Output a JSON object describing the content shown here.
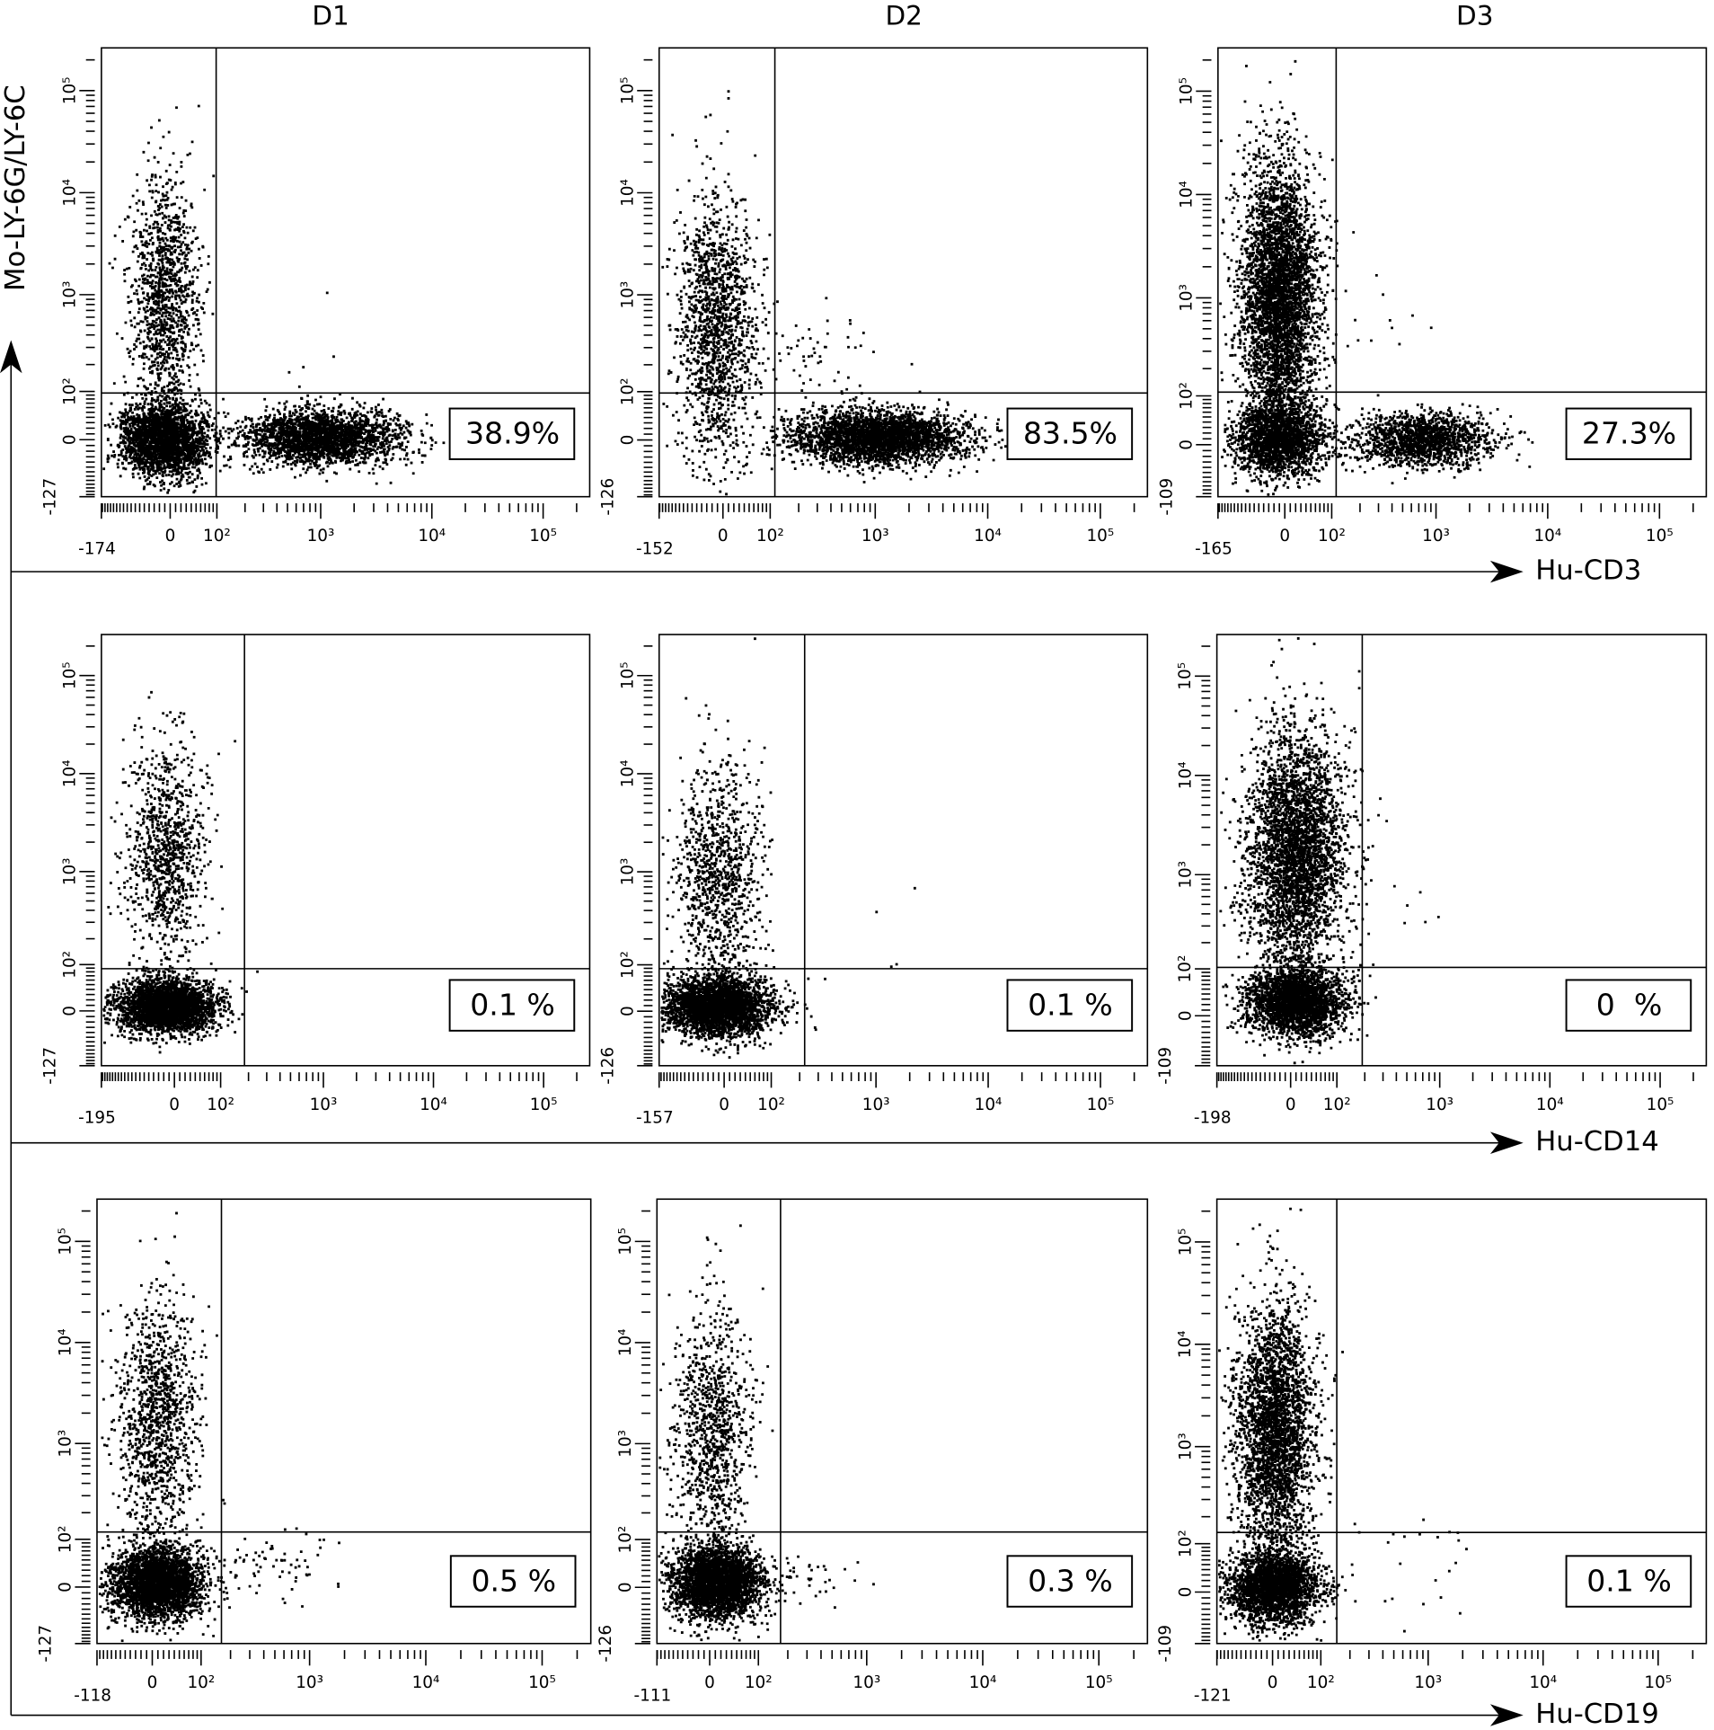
{
  "figure": {
    "column_titles": [
      "D1",
      "D2",
      "D3"
    ],
    "y_label": "Mo-LY-6G/LY-6C",
    "x_labels": [
      "Hu-CD3",
      "Hu-CD14",
      "Hu-CD19"
    ]
  },
  "chart_data": [
    {
      "type": "scatter",
      "xlim": [
        -174,
        262144
      ],
      "ylim": [
        -127,
        262144
      ],
      "xticks": [
        -174,
        0,
        {
          "value": 100,
          "label": "10²"
        },
        {
          "value": 1000,
          "label": "10³"
        },
        {
          "value": 10000,
          "label": "10⁴"
        },
        {
          "value": 100000,
          "label": "10⁵"
        }
      ],
      "yticks": [
        -127,
        0,
        {
          "value": 100,
          "label": "10²"
        },
        {
          "value": 1000,
          "label": "10³"
        },
        {
          "value": 10000,
          "label": "10⁴"
        },
        {
          "value": 100000,
          "label": "10⁵"
        }
      ],
      "annotation": "38.9%"
    },
    {
      "type": "scatter",
      "xlim": [
        -152,
        262144
      ],
      "ylim": [
        -126,
        262144
      ],
      "xticks": [
        -152,
        0,
        {
          "value": 100,
          "label": "10²"
        },
        {
          "value": 1000,
          "label": "10³"
        },
        {
          "value": 10000,
          "label": "10⁴"
        },
        {
          "value": 100000,
          "label": "10⁵"
        }
      ],
      "yticks": [
        -126,
        0,
        {
          "value": 100,
          "label": "10²"
        },
        {
          "value": 1000,
          "label": "10³"
        },
        {
          "value": 10000,
          "label": "10⁴"
        },
        {
          "value": 100000,
          "label": "10⁵"
        }
      ],
      "annotation": "83.5%"
    },
    {
      "type": "scatter",
      "xlim": [
        -165,
        262144
      ],
      "ylim": [
        -109,
        262144
      ],
      "xticks": [
        -165,
        0,
        {
          "value": 100,
          "label": "10²"
        },
        {
          "value": 1000,
          "label": "10³"
        },
        {
          "value": 10000,
          "label": "10⁴"
        },
        {
          "value": 100000,
          "label": "10⁵"
        }
      ],
      "yticks": [
        -109,
        0,
        {
          "value": 100,
          "label": "10²"
        },
        {
          "value": 1000,
          "label": "10³"
        },
        {
          "value": 10000,
          "label": "10⁴"
        },
        {
          "value": 100000,
          "label": "10⁵"
        }
      ],
      "annotation": "27.3%"
    },
    {
      "type": "scatter",
      "xlim": [
        -195,
        262144
      ],
      "ylim": [
        -127,
        262144
      ],
      "xticks": [
        -195,
        0,
        {
          "value": 100,
          "label": "10²"
        },
        {
          "value": 1000,
          "label": "10³"
        },
        {
          "value": 10000,
          "label": "10⁴"
        },
        {
          "value": 100000,
          "label": "10⁵"
        }
      ],
      "yticks": [
        -127,
        0,
        {
          "value": 100,
          "label": "10²"
        },
        {
          "value": 1000,
          "label": "10³"
        },
        {
          "value": 10000,
          "label": "10⁴"
        },
        {
          "value": 100000,
          "label": "10⁵"
        }
      ],
      "annotation": "0.1 %"
    },
    {
      "type": "scatter",
      "xlim": [
        -157,
        262144
      ],
      "ylim": [
        -126,
        262144
      ],
      "xticks": [
        -157,
        0,
        {
          "value": 100,
          "label": "10²"
        },
        {
          "value": 1000,
          "label": "10³"
        },
        {
          "value": 10000,
          "label": "10⁴"
        },
        {
          "value": 100000,
          "label": "10⁵"
        }
      ],
      "yticks": [
        -126,
        0,
        {
          "value": 100,
          "label": "10²"
        },
        {
          "value": 1000,
          "label": "10³"
        },
        {
          "value": 10000,
          "label": "10⁴"
        },
        {
          "value": 100000,
          "label": "10⁵"
        }
      ],
      "annotation": "0.1 %"
    },
    {
      "type": "scatter",
      "xlim": [
        -198,
        262144
      ],
      "ylim": [
        -109,
        262144
      ],
      "xticks": [
        -198,
        0,
        {
          "value": 100,
          "label": "10²"
        },
        {
          "value": 1000,
          "label": "10³"
        },
        {
          "value": 10000,
          "label": "10⁴"
        },
        {
          "value": 100000,
          "label": "10⁵"
        }
      ],
      "yticks": [
        -109,
        0,
        {
          "value": 100,
          "label": "10²"
        },
        {
          "value": 1000,
          "label": "10³"
        },
        {
          "value": 10000,
          "label": "10⁴"
        },
        {
          "value": 100000,
          "label": "10⁵"
        }
      ],
      "annotation": "0  %"
    },
    {
      "type": "scatter",
      "xlim": [
        -118,
        262144
      ],
      "ylim": [
        -127,
        262144
      ],
      "xticks": [
        -118,
        0,
        {
          "value": 100,
          "label": "10²"
        },
        {
          "value": 1000,
          "label": "10³"
        },
        {
          "value": 10000,
          "label": "10⁴"
        },
        {
          "value": 100000,
          "label": "10⁵"
        }
      ],
      "yticks": [
        -127,
        0,
        {
          "value": 100,
          "label": "10²"
        },
        {
          "value": 1000,
          "label": "10³"
        },
        {
          "value": 10000,
          "label": "10⁴"
        },
        {
          "value": 100000,
          "label": "10⁵"
        }
      ],
      "annotation": "0.5 %"
    },
    {
      "type": "scatter",
      "xlim": [
        -111,
        262144
      ],
      "ylim": [
        -126,
        262144
      ],
      "xticks": [
        -111,
        0,
        {
          "value": 100,
          "label": "10²"
        },
        {
          "value": 1000,
          "label": "10³"
        },
        {
          "value": 10000,
          "label": "10⁴"
        },
        {
          "value": 100000,
          "label": "10⁵"
        }
      ],
      "yticks": [
        -126,
        0,
        {
          "value": 100,
          "label": "10²"
        },
        {
          "value": 1000,
          "label": "10³"
        },
        {
          "value": 10000,
          "label": "10⁴"
        },
        {
          "value": 100000,
          "label": "10⁵"
        }
      ],
      "annotation": "0.3 %"
    },
    {
      "type": "scatter",
      "xlim": [
        -121,
        262144
      ],
      "ylim": [
        -109,
        262144
      ],
      "xticks": [
        -121,
        0,
        {
          "value": 100,
          "label": "10²"
        },
        {
          "value": 1000,
          "label": "10³"
        },
        {
          "value": 10000,
          "label": "10⁴"
        },
        {
          "value": 100000,
          "label": "10⁵"
        }
      ],
      "yticks": [
        -109,
        0,
        {
          "value": 100,
          "label": "10²"
        },
        {
          "value": 1000,
          "label": "10³"
        },
        {
          "value": 10000,
          "label": "10⁴"
        },
        {
          "value": 100000,
          "label": "10⁵"
        }
      ],
      "annotation": "0.1 %"
    }
  ]
}
